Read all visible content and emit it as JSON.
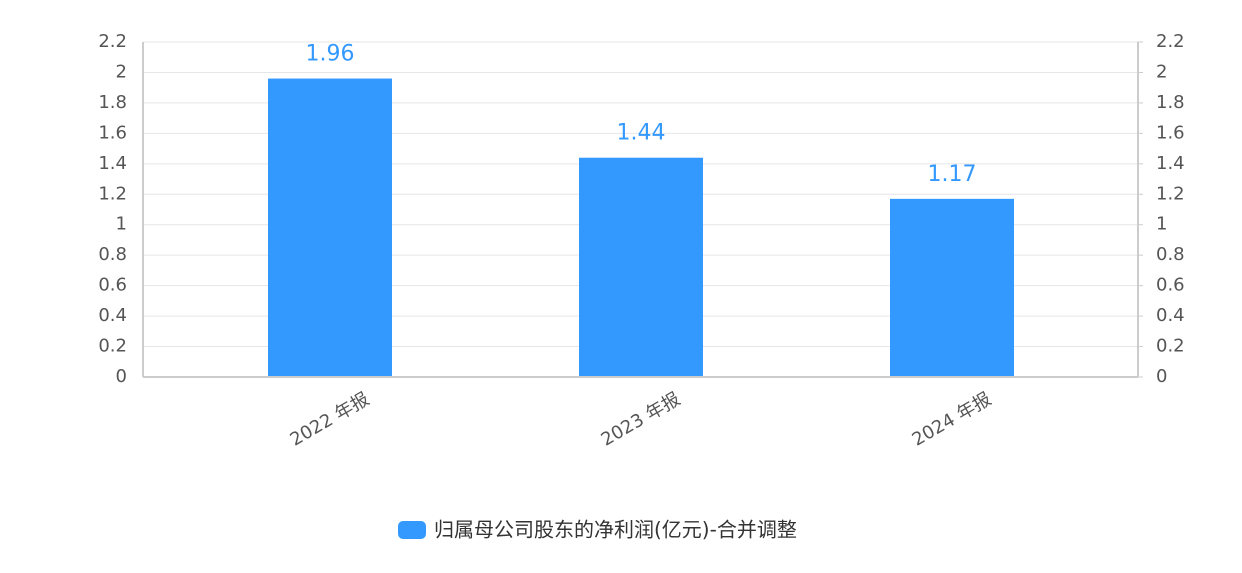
{
  "chart_data": {
    "type": "bar",
    "categories": [
      "2022 年报",
      "2023 年报",
      "2024 年报"
    ],
    "series": [
      {
        "name": "归属母公司股东的净利润(亿元)-合并调整",
        "color": "#3399ff",
        "values": [
          1.96,
          1.44,
          1.17
        ]
      }
    ],
    "ylim": [
      0,
      2.2
    ],
    "yticks": [
      0,
      0.2,
      0.4,
      0.6,
      0.8,
      1,
      1.2,
      1.4,
      1.6,
      1.8,
      2,
      2.2
    ],
    "y2lim": [
      0,
      2.2
    ],
    "y2ticks": [
      0,
      0.2,
      0.4,
      0.6,
      0.8,
      1,
      1.2,
      1.4,
      1.6,
      1.8,
      2,
      2.2
    ],
    "grid": true,
    "legend": "bottom"
  }
}
